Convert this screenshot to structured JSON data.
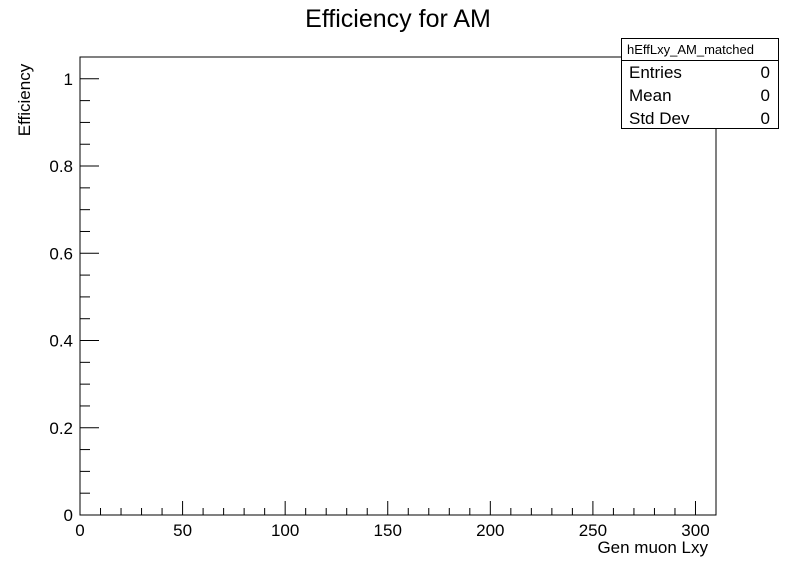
{
  "chart_data": {
    "type": "histogram",
    "title": "Efficiency for AM",
    "xlabel": "Gen muon Lxy",
    "ylabel": "Efficiency",
    "xlim": [
      0,
      310
    ],
    "ylim": [
      0,
      1.05
    ],
    "x_ticks": [
      0,
      50,
      100,
      150,
      200,
      250,
      300
    ],
    "x_tick_labels": [
      "0",
      "50",
      "100",
      "150",
      "200",
      "250",
      "300"
    ],
    "y_ticks": [
      0,
      0.2,
      0.4,
      0.6,
      0.8,
      1
    ],
    "y_tick_labels": [
      "0",
      "0.2",
      "0.4",
      "0.6",
      "0.8",
      "1"
    ],
    "series": [],
    "grid": false,
    "stats_box": {
      "name": "hEffLxy_AM_matched",
      "rows": [
        {
          "label": "Entries",
          "value": "0"
        },
        {
          "label": "Mean",
          "value": "0"
        },
        {
          "label": "Std Dev",
          "value": "0"
        }
      ]
    }
  }
}
